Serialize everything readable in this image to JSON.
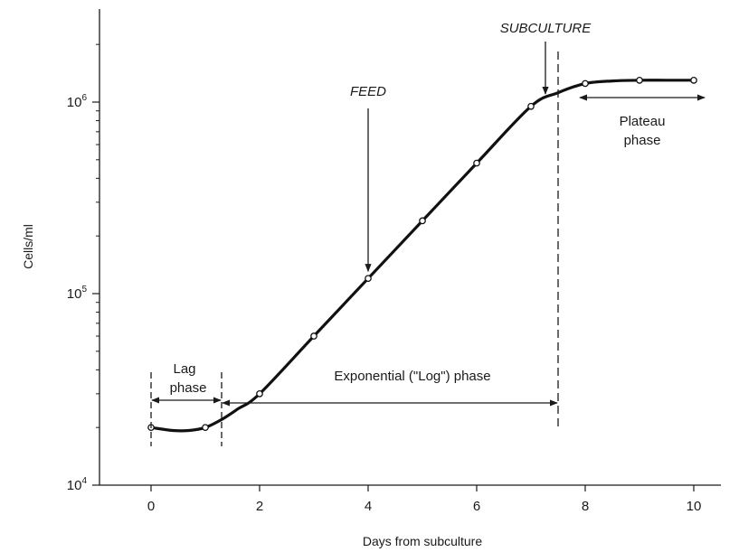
{
  "chart_data": {
    "type": "line",
    "title": "",
    "xlabel": "Days from subculture",
    "ylabel": "Cells/ml",
    "x_scale": "linear",
    "y_scale": "log",
    "xlim": [
      -0.9,
      10.6
    ],
    "ylim": [
      10000,
      2800000
    ],
    "x_ticks": [
      0,
      2,
      4,
      6,
      8,
      10
    ],
    "x_tick_labels": [
      "0",
      "2",
      "4",
      "6",
      "8",
      "10"
    ],
    "y_ticks": [
      {
        "value": 10000,
        "base": "10",
        "exp": "4"
      },
      {
        "value": 100000,
        "base": "10",
        "exp": "5"
      },
      {
        "value": 1000000,
        "base": "10",
        "exp": "6"
      }
    ],
    "grid": false,
    "legend": "none",
    "series": [
      {
        "x": [
          0,
          1,
          2,
          3,
          4,
          5,
          6,
          7,
          8,
          9,
          10
        ],
        "y": [
          20000,
          20000,
          30000,
          60000,
          120000,
          240000,
          480000,
          950000,
          1250000,
          1300000,
          1300000
        ]
      }
    ],
    "curve": {
      "x": [
        0,
        0.4,
        0.7,
        1.0,
        1.3,
        1.6,
        2.0,
        3.0,
        4.0,
        5.0,
        6.0,
        7.0,
        7.5,
        8.0,
        8.5,
        9.0,
        9.5,
        10.0
      ],
      "y": [
        20000,
        19300,
        19300,
        20000,
        22000,
        25000,
        30000,
        60000,
        120000,
        240000,
        480000,
        950000,
        1120000,
        1250000,
        1290000,
        1300000,
        1300000,
        1300000
      ]
    },
    "annotations": {
      "feed": {
        "text": "FEED",
        "x": 4
      },
      "subculture": {
        "text": "SUBCULTURE",
        "x": 7
      },
      "lag": {
        "line1": "Lag",
        "line2": "phase",
        "x_start": 0,
        "x_end": 1.3
      },
      "exponential": {
        "text": "Exponential (\"Log\") phase",
        "x_start": 1.3,
        "x_end": 7.5
      },
      "plateau": {
        "line1": "Plateau",
        "line2": "phase",
        "x_start": 8,
        "x_end": 10
      }
    }
  }
}
